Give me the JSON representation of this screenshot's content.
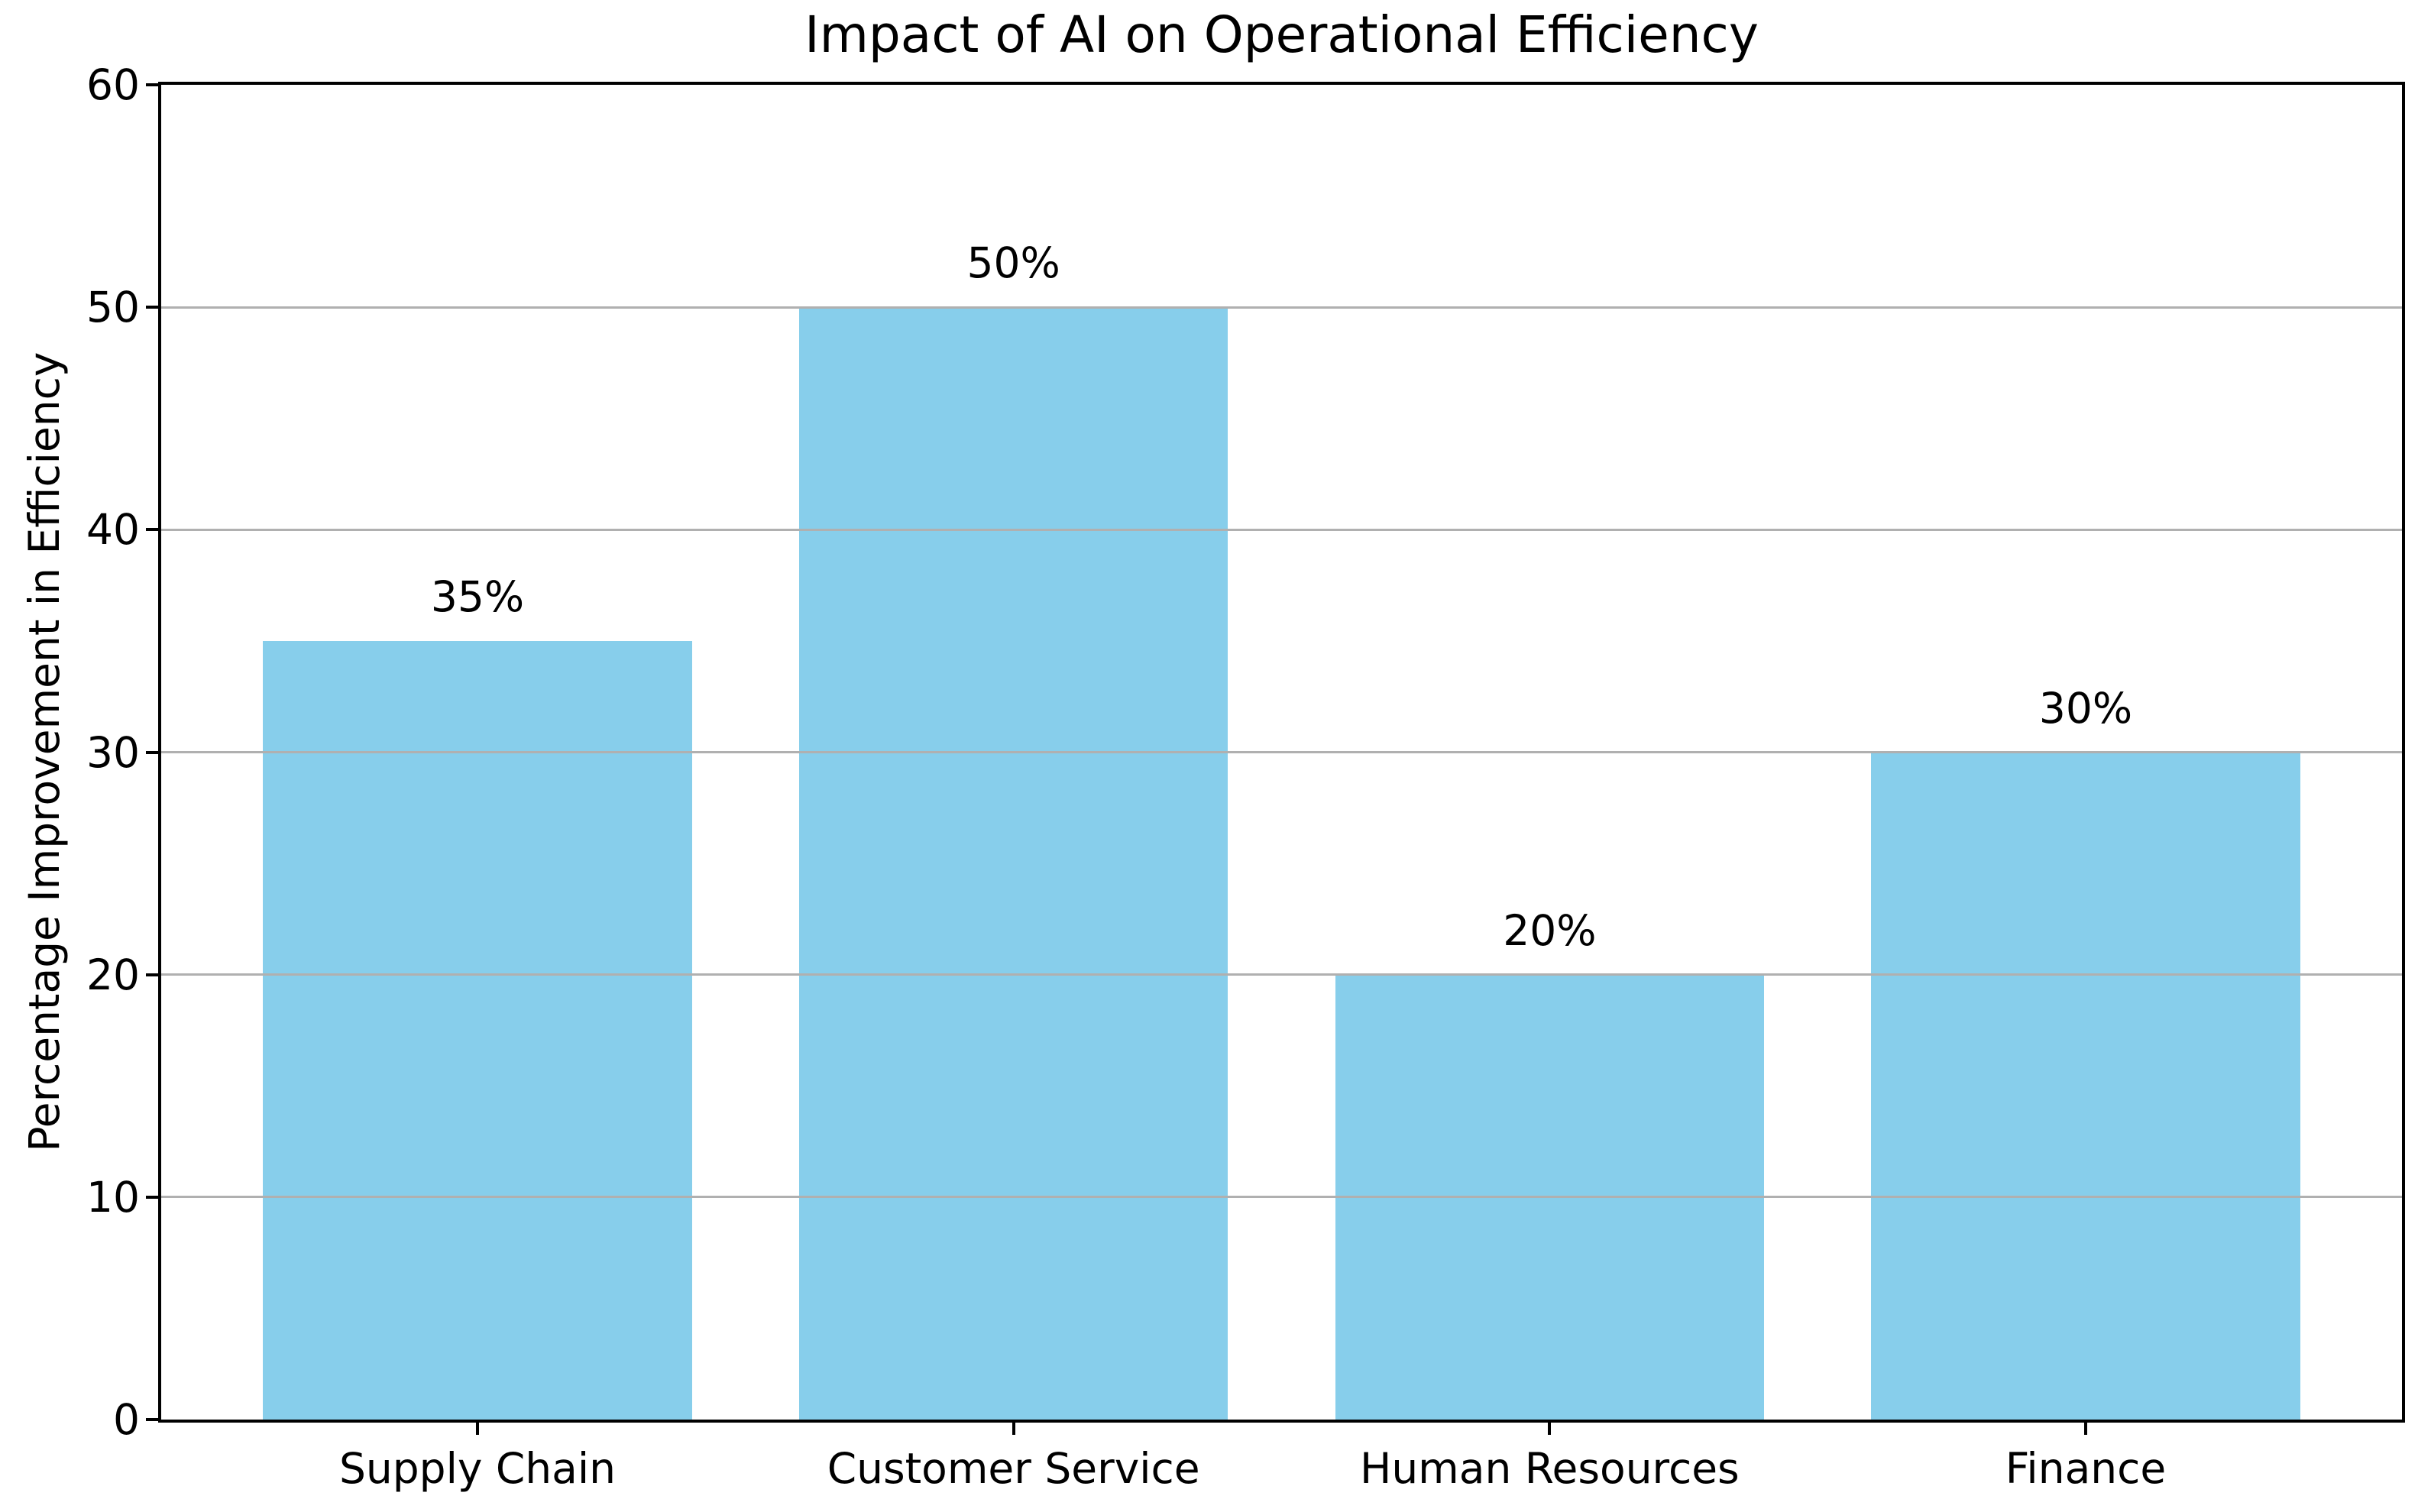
{
  "chart_data": {
    "type": "bar",
    "title": "Impact of AI on Operational Efficiency",
    "xlabel": "",
    "ylabel": "Percentage Improvement in Efficiency",
    "categories": [
      "Supply Chain",
      "Customer Service",
      "Human Resources",
      "Finance"
    ],
    "values": [
      35,
      50,
      20,
      30
    ],
    "bar_labels": [
      "35%",
      "50%",
      "20%",
      "30%"
    ],
    "ylim": [
      0,
      60
    ],
    "yticks": [
      0,
      10,
      20,
      30,
      40,
      50,
      60
    ],
    "grid": "y-only",
    "grid_above_bars": true,
    "legend": "none",
    "colors": {
      "bar": "#87CEEB",
      "grid": "#b0b0b0",
      "axis": "#000000",
      "text": "#000000",
      "background": "#ffffff"
    }
  }
}
